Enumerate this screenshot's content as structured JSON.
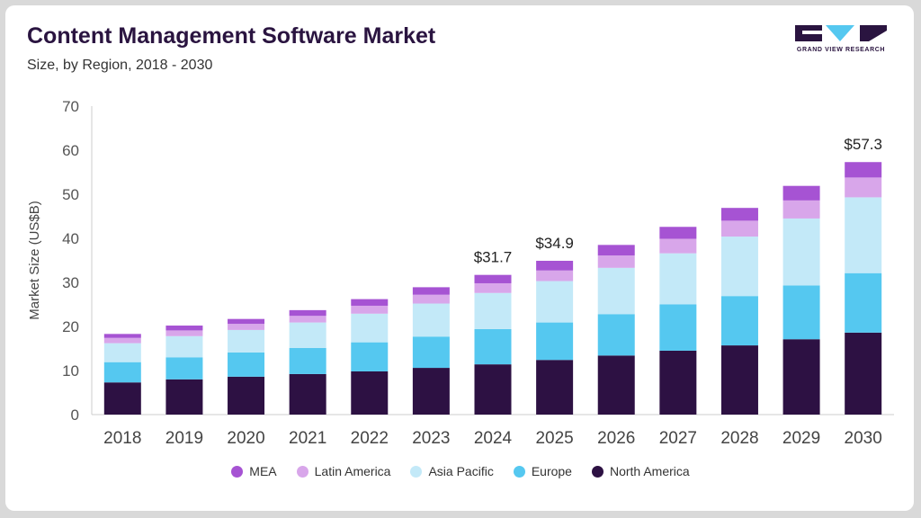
{
  "header": {
    "title": "Content Management Software Market",
    "subtitle": "Size, by Region, 2018 - 2030"
  },
  "logo": {
    "text": "GRAND VIEW RESEARCH",
    "icon": "grand-view-research-logo-icon"
  },
  "chart_data": {
    "type": "bar",
    "stacked": true,
    "title": "Content Management Software Market",
    "subtitle": "Size, by Region, 2018 - 2030",
    "xlabel": "",
    "ylabel": "Market Size (US$B)",
    "ylim": [
      0,
      70
    ],
    "yticks": [
      0,
      10,
      20,
      30,
      40,
      50,
      60,
      70
    ],
    "grid": false,
    "legend_position": "bottom",
    "categories": [
      "2018",
      "2019",
      "2020",
      "2021",
      "2022",
      "2023",
      "2024",
      "2025",
      "2026",
      "2027",
      "2028",
      "2029",
      "2030"
    ],
    "series": [
      {
        "name": "North America",
        "color": "#2d1143",
        "values": [
          7.3,
          8.0,
          8.6,
          9.2,
          9.8,
          10.6,
          11.4,
          12.4,
          13.4,
          14.5,
          15.7,
          17.1,
          18.6
        ]
      },
      {
        "name": "Europe",
        "color": "#55c8f0",
        "values": [
          4.6,
          5.0,
          5.5,
          5.9,
          6.6,
          7.1,
          8.0,
          8.5,
          9.4,
          10.5,
          11.2,
          12.2,
          13.5
        ]
      },
      {
        "name": "Asia Pacific",
        "color": "#c3e9f8",
        "values": [
          4.3,
          4.8,
          5.1,
          5.8,
          6.5,
          7.5,
          8.2,
          9.4,
          10.5,
          11.6,
          13.5,
          15.2,
          17.2
        ]
      },
      {
        "name": "Latin America",
        "color": "#d8a6ea",
        "values": [
          1.2,
          1.3,
          1.4,
          1.5,
          1.8,
          2.0,
          2.2,
          2.4,
          2.8,
          3.3,
          3.6,
          4.1,
          4.5
        ]
      },
      {
        "name": "MEA",
        "color": "#a653d3",
        "values": [
          0.9,
          1.1,
          1.1,
          1.3,
          1.5,
          1.7,
          1.9,
          2.2,
          2.4,
          2.7,
          2.9,
          3.3,
          3.5
        ]
      }
    ],
    "data_labels": [
      {
        "category": "2024",
        "text": "$31.7"
      },
      {
        "category": "2025",
        "text": "$34.9"
      },
      {
        "category": "2030",
        "text": "$57.3"
      }
    ],
    "legend_order": [
      "MEA",
      "Latin America",
      "Asia Pacific",
      "Europe",
      "North America"
    ]
  }
}
